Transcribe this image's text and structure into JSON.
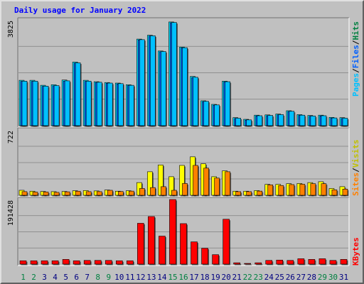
{
  "chart_data": {
    "type": "bar",
    "title": "Daily usage for January 2022",
    "categories": [
      "1",
      "2",
      "3",
      "4",
      "5",
      "6",
      "7",
      "8",
      "9",
      "10",
      "11",
      "12",
      "13",
      "14",
      "15",
      "16",
      "17",
      "18",
      "19",
      "20",
      "21",
      "22",
      "23",
      "24",
      "25",
      "26",
      "27",
      "28",
      "29",
      "30",
      "31"
    ],
    "weekend_days": [
      "1",
      "2",
      "8",
      "9",
      "15",
      "16",
      "22",
      "23",
      "29",
      "30"
    ],
    "panels": [
      {
        "id": "hits",
        "ymax": 3825,
        "ymax_label": "3825",
        "series": [
          {
            "name": "Hits",
            "color": "#00e0ff",
            "values": [
              1640,
              1640,
              1460,
              1480,
              1650,
              2300,
              1640,
              1590,
              1560,
              1540,
              1480,
              3130,
              3270,
              2700,
              3750,
              2840,
              1780,
              900,
              770,
              1610,
              290,
              230,
              380,
              390,
              420,
              540,
              400,
              370,
              380,
              300,
              290
            ]
          },
          {
            "name": "Files",
            "color": "#0060ff",
            "values": [
              1600,
              1600,
              1420,
              1440,
              1610,
              2260,
              1600,
              1560,
              1530,
              1510,
              1450,
              3100,
              3240,
              2670,
              3720,
              2810,
              1740,
              870,
              740,
              1580,
              260,
              200,
              350,
              360,
              390,
              510,
              370,
              340,
              350,
              270,
              260
            ]
          },
          {
            "name": "Pages",
            "color": "#00c0ff",
            "values": [
              1610,
              1610,
              1430,
              1450,
              1620,
              2270,
              1610,
              1570,
              1540,
              1520,
              1460,
              3110,
              3250,
              2680,
              3730,
              2820,
              1750,
              880,
              750,
              1590,
              270,
              210,
              360,
              370,
              400,
              520,
              380,
              350,
              360,
              280,
              270
            ]
          }
        ]
      },
      {
        "id": "visits",
        "ymax": 722,
        "ymax_label": "722",
        "series": [
          {
            "name": "Visits",
            "color": "#ffff00",
            "values": [
              55,
              45,
              42,
              40,
              42,
              50,
              52,
              48,
              58,
              45,
              50,
              140,
              260,
              335,
              205,
              330,
              425,
              348,
              205,
              270,
              45,
              45,
              52,
              120,
              120,
              128,
              130,
              140,
              150,
              75,
              95
            ]
          },
          {
            "name": "Sites",
            "color": "#ff8000",
            "values": [
              40,
              35,
              36,
              32,
              38,
              45,
              40,
              40,
              55,
              42,
              46,
              75,
              85,
              95,
              55,
              130,
              330,
              300,
              190,
              260,
              40,
              40,
              46,
              115,
              108,
              118,
              122,
              128,
              128,
              60,
              68
            ]
          }
        ]
      },
      {
        "id": "kbytes",
        "ymax": 191428,
        "ymax_label": "191428",
        "series": [
          {
            "name": "KBytes",
            "color": "#ff0000",
            "values": [
              10000,
              10000,
              10000,
              10000,
              14000,
              10000,
              11000,
              11000,
              11000,
              10000,
              10000,
              121000,
              141000,
              83000,
              191428,
              120000,
              66000,
              47000,
              28000,
              133000,
              4000,
              2000,
              4000,
              11000,
              12000,
              11000,
              16000,
              14000,
              16000,
              11000,
              14000
            ]
          }
        ]
      }
    ],
    "legend_hits": [
      {
        "text": "Pages",
        "color": "#00c0ff"
      },
      {
        "text": "/",
        "color": "#000000"
      },
      {
        "text": "Files",
        "color": "#0060ff"
      },
      {
        "text": "/",
        "color": "#000000"
      },
      {
        "text": "Hits",
        "color": "#008040"
      }
    ],
    "legend_visits": [
      {
        "text": "Sites",
        "color": "#ff8000"
      },
      {
        "text": "/",
        "color": "#000000"
      },
      {
        "text": "Visits",
        "color": "#c0c000"
      }
    ],
    "legend_kbytes": [
      {
        "text": "KBytes",
        "color": "#ff0000"
      }
    ],
    "colors": {
      "title": "#0000ff",
      "weekday_label": "#000080",
      "weekend_label": "#008040",
      "plot_bg": "#c0c0c0"
    }
  }
}
